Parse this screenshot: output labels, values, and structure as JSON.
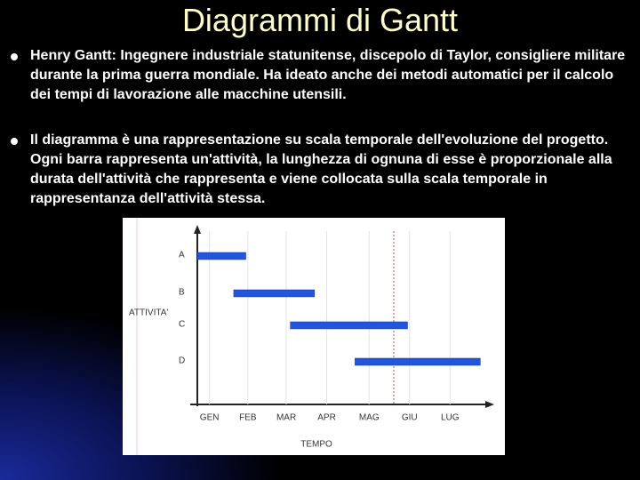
{
  "header": {
    "title": "Diagrammi di Gantt"
  },
  "bullets": [
    "Henry Gantt: Ingegnere industriale statunitense, discepolo di Taylor, consigliere militare durante la prima guerra mondiale. Ha ideato anche dei metodi automatici per il calcolo dei tempi di lavorazione alle macchine utensili.",
    "Il diagramma è una rappresentazione su scala temporale dell'evoluzione del progetto. Ogni barra rappresenta un'attività, la lunghezza di ognuna di esse è proporzionale alla durata dell'attività che rappresenta e viene collocata sulla scala temporale in rappresentanza dell'attività stessa."
  ],
  "chart_data": {
    "type": "gantt",
    "xlabel": "TEMPO",
    "ylabel": "ATTIVITA'",
    "categories": [
      "A",
      "B",
      "C",
      "D"
    ],
    "start": [
      0,
      0.9,
      2.3,
      3.9
    ],
    "end": [
      1.2,
      2.9,
      5.2,
      7.0
    ],
    "color": "#2255dd",
    "xlim": [
      0,
      7.3
    ],
    "xticks": [
      {
        "value": 0.3,
        "label": "GEN"
      },
      {
        "value": 1.25,
        "label": "FEB"
      },
      {
        "value": 2.2,
        "label": "MAR"
      },
      {
        "value": 3.2,
        "label": "APR"
      },
      {
        "value": 4.25,
        "label": "MAG"
      },
      {
        "value": 5.25,
        "label": "GIU"
      },
      {
        "value": 6.25,
        "label": "LUG"
      }
    ]
  }
}
